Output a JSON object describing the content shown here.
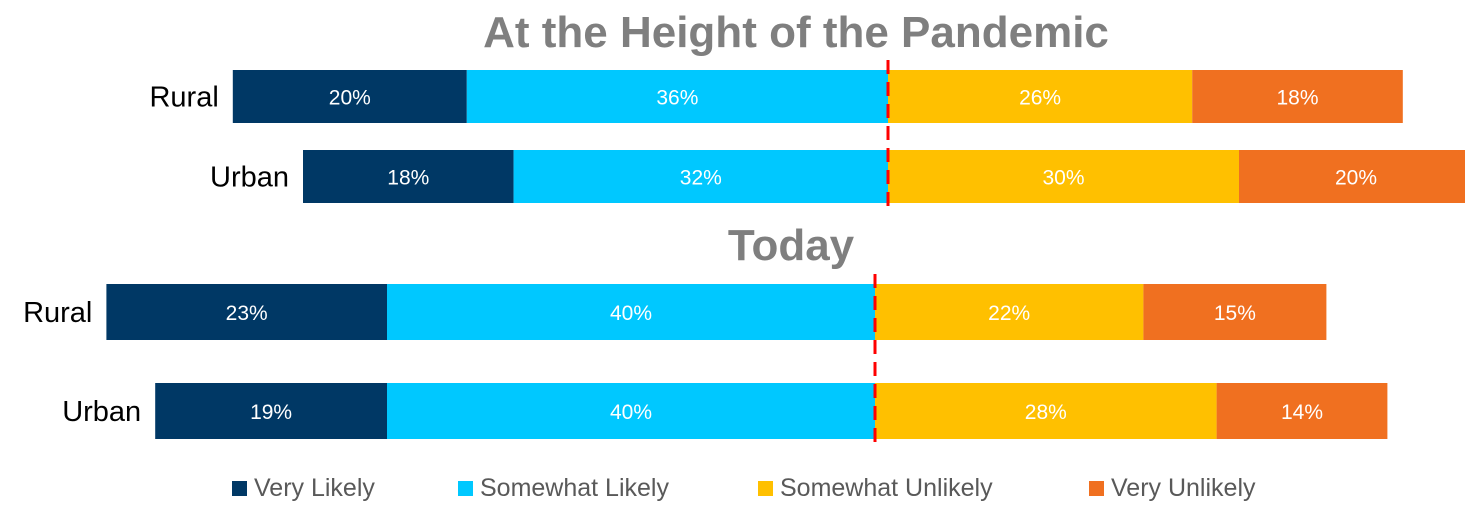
{
  "chart_data": [
    {
      "type": "bar",
      "orientation": "horizontal",
      "stacked": "diverging",
      "title": "At the Height of the Pandemic",
      "categories": [
        "Rural",
        "Urban"
      ],
      "series": [
        {
          "name": "Very Likely",
          "values": [
            20,
            18
          ],
          "labels": [
            "20%",
            "18%"
          ]
        },
        {
          "name": "Somewhat Likely",
          "values": [
            36,
            32
          ],
          "labels": [
            "36%",
            "32%"
          ]
        },
        {
          "name": "Somewhat Unlikely",
          "values": [
            26,
            30
          ],
          "labels": [
            "26%",
            "30%"
          ]
        },
        {
          "name": "Very Unlikely",
          "values": [
            18,
            20
          ],
          "labels": [
            "18%",
            "20%"
          ]
        }
      ]
    },
    {
      "type": "bar",
      "orientation": "horizontal",
      "stacked": "diverging",
      "title": "Today",
      "categories": [
        "Rural",
        "Urban"
      ],
      "series": [
        {
          "name": "Very Likely",
          "values": [
            23,
            19
          ],
          "labels": [
            "23%",
            "19%"
          ]
        },
        {
          "name": "Somewhat Likely",
          "values": [
            40,
            40
          ],
          "labels": [
            "40%",
            "40%"
          ]
        },
        {
          "name": "Somewhat Unlikely",
          "values": [
            22,
            28
          ],
          "labels": [
            "22%",
            "28%"
          ]
        },
        {
          "name": "Very Unlikely",
          "values": [
            15,
            14
          ],
          "labels": [
            "15%",
            "14%"
          ]
        }
      ]
    }
  ],
  "legend": {
    "position": "bottom",
    "items": [
      {
        "label": "Very Likely",
        "color": "#003865"
      },
      {
        "label": "Somewhat Likely",
        "color": "#00c8ff"
      },
      {
        "label": "Somewhat Unlikely",
        "color": "#ffc000"
      },
      {
        "label": "Very Unlikely",
        "color": "#f07020"
      }
    ]
  },
  "colors": {
    "very_likely": "#003865",
    "somewhat_likely": "#00c8ff",
    "somewhat_unlikely": "#ffc000",
    "very_unlikely": "#f07020",
    "title": "#7f7f7f",
    "divider": "#ff0000"
  }
}
